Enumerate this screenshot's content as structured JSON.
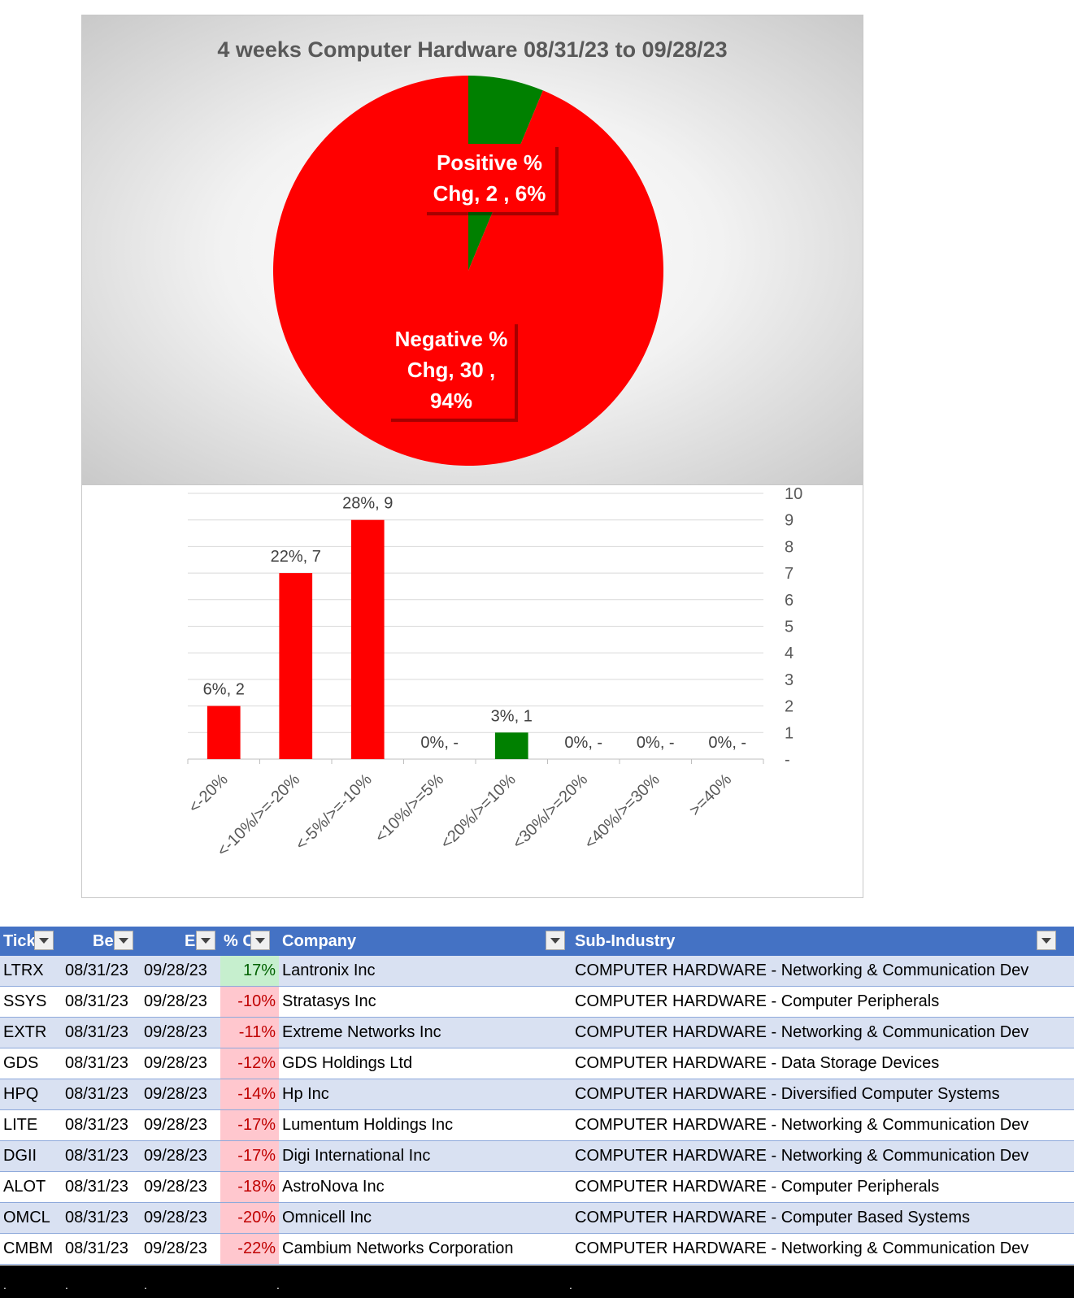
{
  "chart_data": [
    {
      "type": "pie",
      "title": "4 weeks Computer Hardware 08/31/23 to 09/28/23",
      "slices": [
        {
          "label_lines": [
            "Positive %",
            "Chg,  2 , 6%"
          ],
          "value": 2,
          "percent": 6,
          "color": "#008000"
        },
        {
          "label_lines": [
            "Negative %",
            "Chg,  30 ,",
            "94%"
          ],
          "value": 30,
          "percent": 94,
          "color": "#ff0000"
        }
      ]
    },
    {
      "type": "bar",
      "categories": [
        "<-20%",
        "<-10%/>=-20%",
        "<-5%/>=-10%",
        "<10%/>=5%",
        "<20%/>=10%",
        "<30%/>=20%",
        "<40%/>=30%",
        ">=40%"
      ],
      "values": [
        2,
        7,
        9,
        0,
        1,
        0,
        0,
        0
      ],
      "data_labels": [
        "6%,  2",
        "22%,  7",
        "28%,  9",
        "0%,  -",
        "3%,  1",
        "0%,  -",
        "0%,  -",
        "0%,  -"
      ],
      "colors": [
        "#ff0000",
        "#ff0000",
        "#ff0000",
        "#ff0000",
        "#008000",
        "#008000",
        "#008000",
        "#008000"
      ],
      "y_ticks": [
        "-",
        "1",
        "2",
        "3",
        "4",
        "5",
        "6",
        "7",
        "8",
        "9",
        "10"
      ],
      "ylim": [
        0,
        10
      ],
      "y_axis_side": "right",
      "grid": true
    }
  ],
  "table": {
    "headers": [
      "Tick",
      "Be",
      "E",
      "% C",
      "Company",
      "Sub-Industry"
    ],
    "rows": [
      {
        "ticker": "LTRX",
        "begin": "08/31/23",
        "end": "09/28/23",
        "pct": "17%",
        "sign": "pos",
        "company": "Lantronix Inc",
        "sub": "COMPUTER HARDWARE - Networking & Communication Dev"
      },
      {
        "ticker": "SSYS",
        "begin": "08/31/23",
        "end": "09/28/23",
        "pct": "-10%",
        "sign": "neg",
        "company": "Stratasys Inc",
        "sub": "COMPUTER HARDWARE - Computer Peripherals"
      },
      {
        "ticker": "EXTR",
        "begin": "08/31/23",
        "end": "09/28/23",
        "pct": "-11%",
        "sign": "neg",
        "company": "Extreme Networks Inc",
        "sub": "COMPUTER HARDWARE - Networking & Communication Dev"
      },
      {
        "ticker": "GDS",
        "begin": "08/31/23",
        "end": "09/28/23",
        "pct": "-12%",
        "sign": "neg",
        "company": "GDS Holdings Ltd",
        "sub": "COMPUTER HARDWARE - Data Storage Devices"
      },
      {
        "ticker": "HPQ",
        "begin": "08/31/23",
        "end": "09/28/23",
        "pct": "-14%",
        "sign": "neg",
        "company": "Hp Inc",
        "sub": "COMPUTER HARDWARE - Diversified Computer Systems"
      },
      {
        "ticker": "LITE",
        "begin": "08/31/23",
        "end": "09/28/23",
        "pct": "-17%",
        "sign": "neg",
        "company": "Lumentum Holdings Inc",
        "sub": "COMPUTER HARDWARE - Networking & Communication Dev"
      },
      {
        "ticker": "DGII",
        "begin": "08/31/23",
        "end": "09/28/23",
        "pct": "-17%",
        "sign": "neg",
        "company": "Digi International Inc",
        "sub": "COMPUTER HARDWARE - Networking & Communication Dev"
      },
      {
        "ticker": "ALOT",
        "begin": "08/31/23",
        "end": "09/28/23",
        "pct": "-18%",
        "sign": "neg",
        "company": "AstroNova Inc",
        "sub": "COMPUTER HARDWARE - Computer Peripherals"
      },
      {
        "ticker": "OMCL",
        "begin": "08/31/23",
        "end": "09/28/23",
        "pct": "-20%",
        "sign": "neg",
        "company": "Omnicell Inc",
        "sub": "COMPUTER HARDWARE - Computer Based Systems"
      },
      {
        "ticker": "CMBM",
        "begin": "08/31/23",
        "end": "09/28/23",
        "pct": "-22%",
        "sign": "neg",
        "company": "Cambium Networks Corporation",
        "sub": "COMPUTER HARDWARE - Networking & Communication Dev"
      }
    ]
  },
  "footer": {
    "dots": [
      ".",
      ".",
      ".",
      ".",
      "."
    ]
  }
}
